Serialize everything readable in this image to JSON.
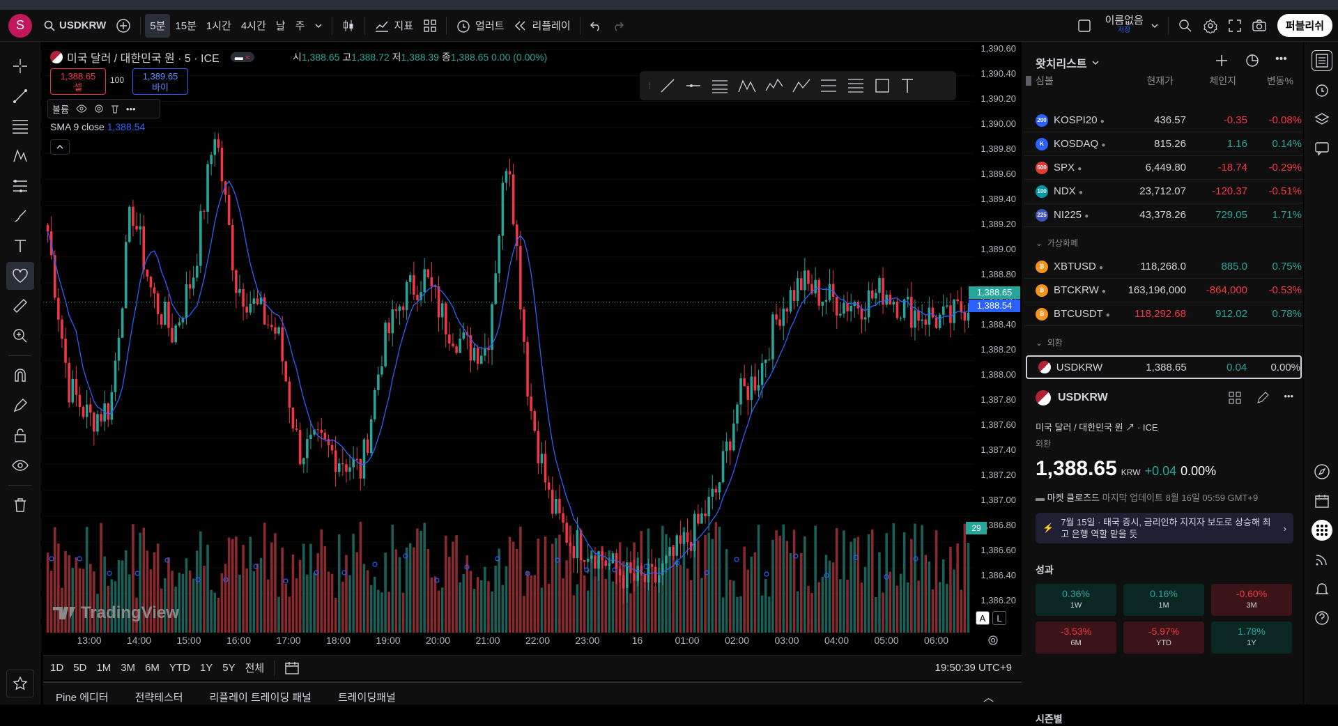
{
  "topbar": {
    "avatar": "S",
    "symbol": "USDKRW",
    "intervals": [
      "5분",
      "15분",
      "1시간",
      "4시간",
      "날",
      "주"
    ],
    "indicators_label": "지표",
    "alert_label": "얼러트",
    "replay_label": "리플레이",
    "layout_name": "이름없음",
    "layout_saved": "저장",
    "publish_label": "퍼블리쉬"
  },
  "legend": {
    "title": "미국 달러 / 대한민국 원 · 5 · ICE",
    "o_label": "시",
    "o": "1,388.65",
    "h_label": "고",
    "h": "1,388.72",
    "l_label": "저",
    "l": "1,388.39",
    "c_label": "종",
    "c": "1,388.65",
    "change": "0.00 (0.00%)",
    "sell_price": "1,388.65",
    "sell_label": "셀",
    "qty": "100",
    "buy_price": "1,389.65",
    "buy_label": "바이",
    "volume_label": "볼륨",
    "sma_label": "SMA 9 close",
    "sma_value": "1,388.54"
  },
  "watermark": "TradingView",
  "price_axis": [
    "1,390.60",
    "1,390.40",
    "1,390.20",
    "1,390.00",
    "1,389.80",
    "1,389.60",
    "1,389.40",
    "1,389.20",
    "1,389.00",
    "1,388.80",
    "1,388.60",
    "1,388.40",
    "1,388.20",
    "1,388.00",
    "1,387.80",
    "1,387.60",
    "1,387.40",
    "1,387.20",
    "1,387.00",
    "1,386.80",
    "1,386.60",
    "1,386.40",
    "1,386.20"
  ],
  "price_tag_last": "1,388.65",
  "price_tag_sma": "1,388.54",
  "volume_countdown": "29",
  "time_axis": [
    "13:00",
    "14:00",
    "15:00",
    "16:00",
    "17:00",
    "18:00",
    "19:00",
    "20:00",
    "21:00",
    "22:00",
    "23:00",
    "16",
    "01:00",
    "02:00",
    "03:00",
    "04:00",
    "05:00",
    "06:00"
  ],
  "scale_buttons": [
    "A",
    "L"
  ],
  "range_buttons": [
    "1D",
    "5D",
    "1M",
    "3M",
    "6M",
    "YTD",
    "1Y",
    "5Y",
    "전체"
  ],
  "clock": "19:50:39 UTC+9",
  "bottom_tabs": [
    "Pine 에디터",
    "전략테스터",
    "리플레이 트레이딩 패널",
    "트레이딩패널"
  ],
  "watchlist": {
    "title": "왓치리스트",
    "headers": {
      "symbol": "심볼",
      "last": "현재가",
      "change": "체인지",
      "pct": "변동%"
    },
    "rows": [
      {
        "icon": "200",
        "color": "#2962ff",
        "symbol": "KOSPI20",
        "last": "436.57",
        "change": "-0.35",
        "pct": "-0.08%",
        "dir": "down"
      },
      {
        "icon": "K",
        "color": "#2962ff",
        "symbol": "KOSDAQ",
        "last": "815.26",
        "change": "1.16",
        "pct": "0.14%",
        "dir": "up"
      },
      {
        "icon": "500",
        "color": "#e53935",
        "symbol": "SPX",
        "last": "6,449.80",
        "change": "-18.74",
        "pct": "-0.29%",
        "dir": "down"
      },
      {
        "icon": "100",
        "color": "#0097a7",
        "symbol": "NDX",
        "last": "23,712.07",
        "change": "-120.37",
        "pct": "-0.51%",
        "dir": "down"
      },
      {
        "icon": "225",
        "color": "#3f51b5",
        "symbol": "NI225",
        "last": "43,378.26",
        "change": "729.05",
        "pct": "1.71%",
        "dir": "up"
      }
    ],
    "section_crypto": "가상화폐",
    "crypto": [
      {
        "icon": "₿",
        "color": "#f7931a",
        "symbol": "XBTUSD",
        "last": "118,268.0",
        "change": "885.0",
        "pct": "0.75%",
        "dir": "up",
        "lastdir": "none"
      },
      {
        "icon": "₿",
        "color": "#f7931a",
        "symbol": "BTCKRW",
        "last": "163,196,000",
        "change": "-864,000",
        "pct": "-0.53%",
        "dir": "down",
        "lastdir": "none"
      },
      {
        "icon": "₿",
        "color": "#f7931a",
        "symbol": "BTCUSDT",
        "last": "118,292.68",
        "change": "912.02",
        "pct": "0.78%",
        "dir": "up",
        "lastdir": "down"
      }
    ],
    "section_fx": "외환",
    "fx": {
      "symbol": "USDKRW",
      "last": "1,388.65",
      "change": "0.04",
      "pct": "0.00%"
    }
  },
  "details": {
    "symbol": "USDKRW",
    "description": "미국 달러 / 대한민국 원",
    "exchange": "ICE",
    "category": "외환",
    "price": "1,388.65",
    "currency": "KRW",
    "change": "+0.04",
    "change_pct": "0.00%",
    "market_status": "마켓 클로즈드",
    "last_update": "마지막 업데이트 8월 16일 05:59 GMT+9",
    "news": "7월 15일 · 태국 증시, 금리인하 지지자 보도로 상승해 최고 은행 역할 맡을 듯",
    "performance_title": "성과",
    "performance": [
      {
        "value": "0.36%",
        "label": "1W",
        "dir": "up"
      },
      {
        "value": "0.16%",
        "label": "1M",
        "dir": "up"
      },
      {
        "value": "-0.60%",
        "label": "3M",
        "dir": "down"
      },
      {
        "value": "-3.53%",
        "label": "6M",
        "dir": "down"
      },
      {
        "value": "-5.97%",
        "label": "YTD",
        "dir": "down"
      },
      {
        "value": "1.78%",
        "label": "1Y",
        "dir": "up"
      }
    ],
    "seasonal_title": "시즌별"
  },
  "chart_data": {
    "type": "candlestick",
    "series_sma_name": "SMA 9 close",
    "ylim": [
      1386.1,
      1390.65
    ],
    "colors": {
      "up": "#26a69a",
      "down": "#f23645",
      "sma": "#2962ff"
    },
    "close_waypoints": [
      1389.2,
      1388.0,
      1387.75,
      1387.85,
      1389.4,
      1388.7,
      1388.4,
      1388.9,
      1390.0,
      1388.8,
      1388.6,
      1388.4,
      1387.5,
      1387.55,
      1387.45,
      1387.35,
      1388.3,
      1388.7,
      1388.85,
      1388.5,
      1388.3,
      1388.3,
      1389.9,
      1387.9,
      1387.1,
      1386.8,
      1386.75,
      1386.6,
      1386.5,
      1386.5,
      1386.7,
      1386.9,
      1387.2,
      1387.9,
      1388.1,
      1388.6,
      1388.8,
      1388.7,
      1388.65,
      1388.65,
      1388.75,
      1388.6,
      1388.55,
      1388.5,
      1388.65
    ]
  }
}
